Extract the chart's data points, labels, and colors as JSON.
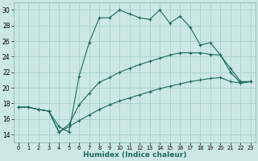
{
  "xlabel": "Humidex (Indice chaleur)",
  "background_color": "#cce8e5",
  "grid_color": "#a8d0cc",
  "line_color": "#1a6b5e",
  "xlim": [
    -0.5,
    23.5
  ],
  "ylim": [
    13,
    31
  ],
  "xticks": [
    0,
    1,
    2,
    3,
    4,
    5,
    6,
    7,
    8,
    9,
    10,
    11,
    12,
    13,
    14,
    15,
    16,
    17,
    18,
    19,
    20,
    21,
    22,
    23
  ],
  "yticks": [
    14,
    16,
    18,
    20,
    22,
    24,
    26,
    28,
    30
  ],
  "series1_x": [
    0,
    1,
    2,
    3,
    4,
    5,
    6,
    7,
    8,
    9,
    10,
    11,
    12,
    13,
    14,
    15,
    16,
    17,
    18,
    19,
    20,
    21,
    22,
    23
  ],
  "series1_y": [
    17.5,
    17.5,
    17.2,
    17.0,
    15.0,
    14.3,
    21.5,
    25.8,
    29.0,
    29.0,
    30.0,
    29.5,
    29.0,
    28.8,
    30.0,
    28.3,
    29.2,
    27.8,
    25.5,
    25.8,
    24.2,
    22.0,
    20.6,
    20.8
  ],
  "series2_x": [
    0,
    1,
    2,
    3,
    4,
    5,
    6,
    7,
    8,
    9,
    10,
    11,
    12,
    13,
    14,
    15,
    16,
    17,
    18,
    19,
    20,
    21,
    22,
    23
  ],
  "series2_y": [
    17.5,
    17.5,
    17.2,
    17.0,
    14.3,
    15.3,
    17.8,
    19.3,
    20.7,
    21.3,
    22.0,
    22.5,
    23.0,
    23.4,
    23.8,
    24.2,
    24.5,
    24.5,
    24.5,
    24.3,
    24.2,
    22.5,
    20.8,
    20.8
  ],
  "series3_x": [
    0,
    1,
    2,
    3,
    4,
    5,
    6,
    7,
    8,
    9,
    10,
    11,
    12,
    13,
    14,
    15,
    16,
    17,
    18,
    19,
    20,
    21,
    22,
    23
  ],
  "series3_y": [
    17.5,
    17.5,
    17.2,
    17.0,
    14.3,
    15.0,
    15.8,
    16.5,
    17.2,
    17.8,
    18.3,
    18.7,
    19.1,
    19.5,
    19.9,
    20.2,
    20.5,
    20.8,
    21.0,
    21.2,
    21.3,
    20.8,
    20.6,
    20.8
  ]
}
